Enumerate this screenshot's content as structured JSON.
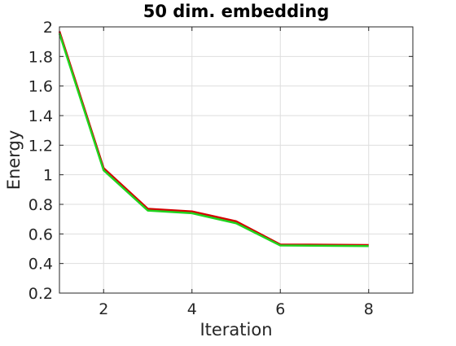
{
  "chart_data": {
    "type": "line",
    "title": "50 dim. embedding",
    "xlabel": "Iteration",
    "ylabel": "Energy",
    "xlim": [
      1,
      9
    ],
    "ylim": [
      0.2,
      2
    ],
    "xticks": [
      2,
      4,
      6,
      8
    ],
    "yticks": [
      0.2,
      0.4,
      0.6,
      0.8,
      1,
      1.2,
      1.4,
      1.6,
      1.8,
      2
    ],
    "xtick_labels": [
      "2",
      "4",
      "6",
      "8"
    ],
    "ytick_labels": [
      "0.2",
      "0.4",
      "0.6",
      "0.8",
      "1",
      "1.2",
      "1.4",
      "1.6",
      "1.8",
      "2"
    ],
    "grid": true,
    "legend": "none",
    "x": [
      1,
      2,
      3,
      4,
      5,
      6,
      7,
      8
    ],
    "series": [
      {
        "color": "#d40000",
        "values": [
          1.97,
          1.045,
          0.77,
          0.752,
          0.685,
          0.528,
          0.527,
          0.525
        ]
      },
      {
        "color": "#1fd41f",
        "values": [
          1.955,
          1.03,
          0.758,
          0.74,
          0.672,
          0.522,
          0.52,
          0.518
        ]
      }
    ]
  }
}
